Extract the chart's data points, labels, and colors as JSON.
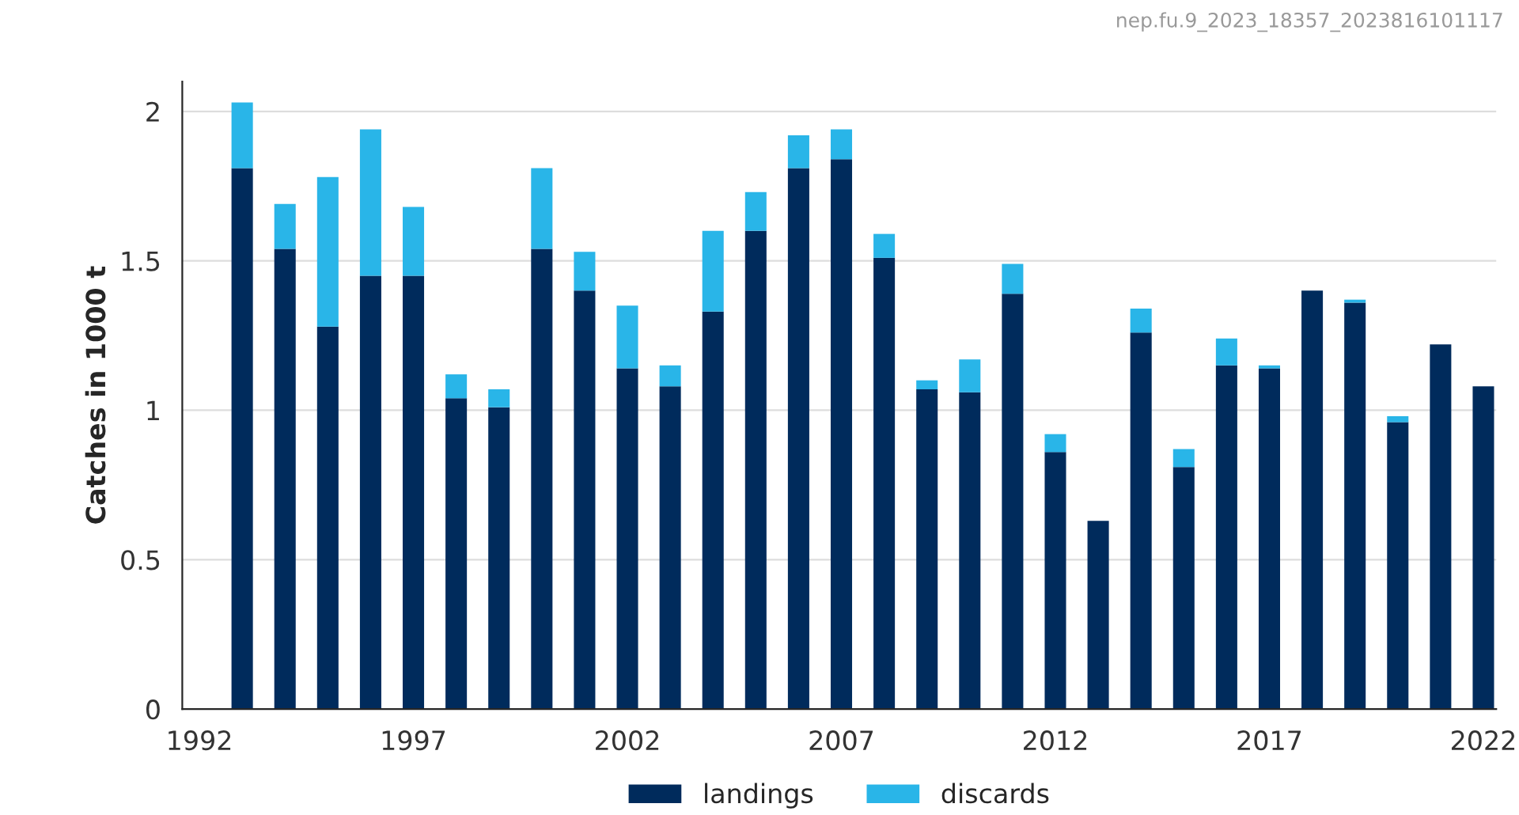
{
  "chart_data": {
    "type": "bar",
    "stacked": true,
    "ylabel": "Catches in 1000 t",
    "annotations": [
      "nep.fu.9_2023_18357_2023816101117"
    ],
    "x": [
      1993,
      1994,
      1995,
      1996,
      1997,
      1998,
      1999,
      2000,
      2001,
      2002,
      2003,
      2004,
      2005,
      2006,
      2007,
      2008,
      2009,
      2010,
      2011,
      2012,
      2013,
      2014,
      2015,
      2016,
      2017,
      2018,
      2019,
      2020,
      2021,
      2022
    ],
    "series": [
      {
        "name": "landings",
        "color": "#002b5c",
        "values": [
          1.81,
          1.54,
          1.28,
          1.45,
          1.45,
          1.04,
          1.01,
          1.54,
          1.4,
          1.14,
          1.08,
          1.33,
          1.6,
          1.81,
          1.84,
          1.51,
          1.07,
          1.06,
          1.39,
          0.86,
          0.63,
          1.26,
          0.81,
          1.15,
          1.14,
          1.4,
          1.36,
          0.96,
          1.22,
          1.08
        ]
      },
      {
        "name": "discards",
        "color": "#29b5e8",
        "values": [
          0.22,
          0.15,
          0.5,
          0.49,
          0.23,
          0.08,
          0.06,
          0.27,
          0.13,
          0.21,
          0.07,
          0.27,
          0.13,
          0.11,
          0.1,
          0.08,
          0.03,
          0.11,
          0.1,
          0.06,
          null,
          0.08,
          0.06,
          0.09,
          0.01,
          null,
          0.01,
          0.02,
          null,
          null
        ]
      }
    ],
    "xlim": [
      1991.6,
      2022.3
    ],
    "xticks": [
      1992,
      1997,
      2002,
      2007,
      2012,
      2017,
      2022
    ],
    "ylim": [
      0,
      2.1
    ],
    "yticks": [
      0,
      0.5,
      1,
      1.5,
      2
    ],
    "grid": "y",
    "legend": "bottom"
  }
}
